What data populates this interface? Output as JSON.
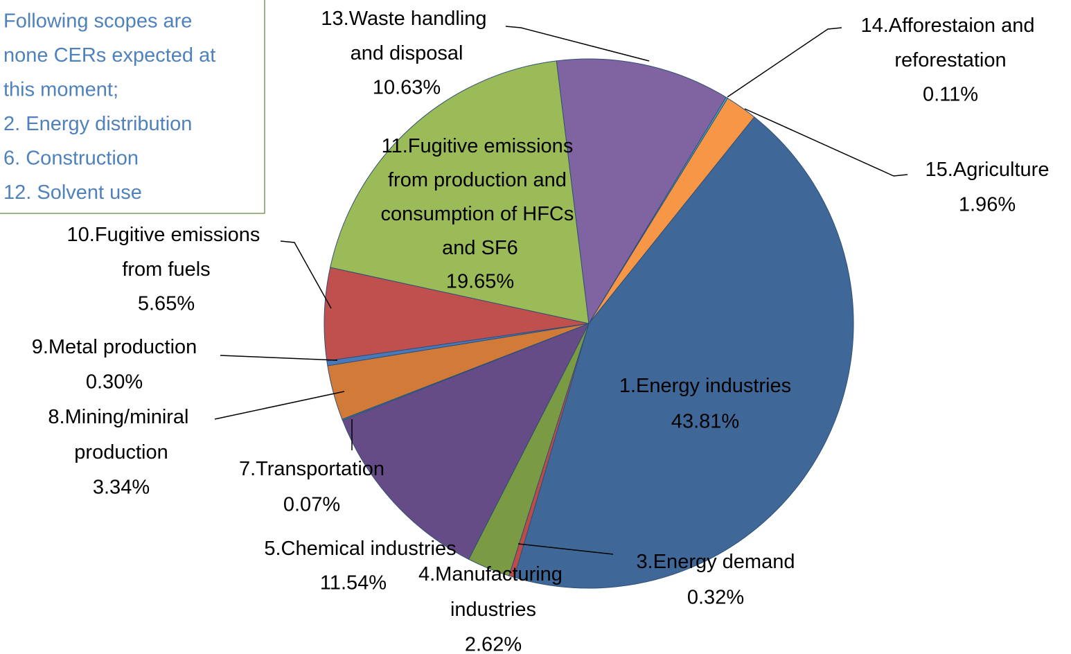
{
  "chart_data": {
    "type": "pie",
    "categories": [
      "1.Energy industries",
      "3.Energy demand",
      "4.Manufacturing industries",
      "5.Chemical industries",
      "7.Transportation",
      "8.Mining/miniral production",
      "9.Metal production",
      "10.Fugitive emissions from fuels",
      "11.Fugitive emissions from production and consumption of HFCs and SF6",
      "13.Waste handling and disposal",
      "14.Afforestaion and reforestation",
      "15.Agriculture"
    ],
    "values": [
      43.81,
      0.32,
      2.62,
      11.54,
      0.07,
      3.34,
      0.3,
      5.65,
      19.65,
      10.63,
      0.11,
      1.96
    ],
    "value_labels": [
      "43.81%",
      "0.32%",
      "2.62%",
      "11.54%",
      "0.07%",
      "3.34%",
      "0.30%",
      "5.65%",
      "19.65%",
      "10.63%",
      "0.11%",
      "1.96%"
    ],
    "colors": [
      "#3f6899",
      "#be4b48",
      "#7a9a44",
      "#654c86",
      "#3a8da0",
      "#d27a38",
      "#4a78b8",
      "#c0504d",
      "#9bbb59",
      "#8064a2",
      "#4bacc6",
      "#f79646"
    ],
    "annotations": [
      "Following scopes are",
      "none CERs expected at",
      "this moment;",
      "2. Energy distribution",
      "6. Construction",
      "12. Solvent use"
    ]
  }
}
